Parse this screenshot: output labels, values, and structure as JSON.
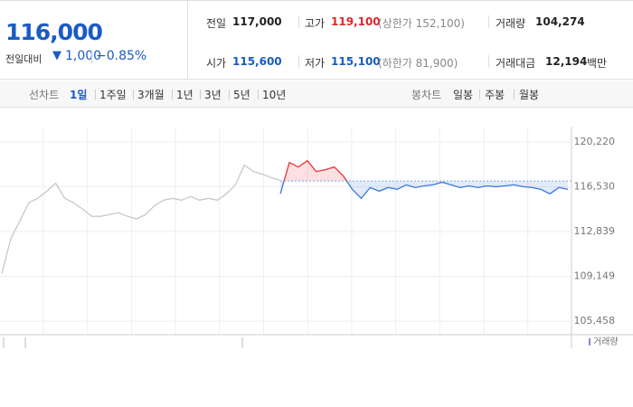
{
  "quote": {
    "price": "116,000",
    "change_label": "전일대비",
    "change": "1,000",
    "change_rate": "−0.85%"
  },
  "stats": [
    {
      "label": "전일",
      "value": "117,000",
      "color": "#222222"
    },
    {
      "label": "고가",
      "value": "119,100",
      "color": "#e0262a",
      "note": "(상한가 152,100)"
    },
    {
      "label": "거래량",
      "value": "104,274",
      "color": "#222222"
    },
    {
      "label": "시가",
      "value": "115,600",
      "color": "#1a5bc4"
    },
    {
      "label": "저가",
      "value": "115,100",
      "color": "#1a5bc4",
      "note": "(하한가 81,900)"
    },
    {
      "label": "거래대금",
      "value": "12,194",
      "color": "#222222",
      "unit": "백만"
    }
  ],
  "tabs": {
    "line_chart": {
      "label": "선차트",
      "items": [
        "1일",
        "1주일",
        "3개월",
        "1년",
        "3년",
        "5년",
        "10년"
      ],
      "selected": 0
    },
    "candle_chart": {
      "label": "봉차트",
      "items": [
        "일봉",
        "주봉",
        "월봉"
      ]
    }
  },
  "chart_data": {
    "type": "line",
    "ylim": [
      104350,
      121475
    ],
    "yticks": [
      {
        "value": 120220,
        "label": "120,220"
      },
      {
        "value": 116530,
        "label": "116,530"
      },
      {
        "value": 112839,
        "label": "112,839"
      },
      {
        "value": 109149,
        "label": "109,149"
      },
      {
        "value": 105458,
        "label": "105,458"
      }
    ],
    "baseline": 117000,
    "grid": true,
    "volume_label": "거래량",
    "series": [
      {
        "color": "#c8c8c8",
        "values": [
          109400,
          112250,
          113700,
          115200,
          115570,
          116160,
          116820,
          115570,
          115200,
          114680,
          114090,
          114090,
          114240,
          114390,
          114090,
          113870,
          114240,
          114980,
          115420,
          115570,
          115420,
          115720,
          115420,
          115570,
          115420,
          115940,
          116680,
          118300,
          117780,
          117560,
          117270,
          117050,
          null,
          null,
          null,
          null,
          null,
          null,
          null,
          null,
          null,
          null,
          null,
          null,
          null,
          null,
          null,
          null,
          null,
          null,
          null,
          null,
          null,
          null,
          null,
          null,
          null,
          null,
          null,
          null,
          null,
          null,
          null,
          null
        ]
      },
      {
        "color_up": "#e8333a",
        "color_down": "#3b78d8",
        "values": [
          null,
          null,
          null,
          null,
          null,
          null,
          null,
          null,
          null,
          null,
          null,
          null,
          null,
          null,
          null,
          null,
          null,
          null,
          null,
          null,
          null,
          null,
          null,
          null,
          null,
          null,
          null,
          null,
          null,
          null,
          null,
          115940,
          118520,
          118150,
          118670,
          117780,
          117930,
          118150,
          117420,
          116310,
          115570,
          116460,
          116160,
          116460,
          116310,
          116680,
          116460,
          116600,
          116680,
          116900,
          116680,
          116460,
          116600,
          116460,
          116600,
          116530,
          116600,
          116680,
          116530,
          116460,
          116310,
          115940,
          116460,
          116310
        ]
      }
    ]
  }
}
